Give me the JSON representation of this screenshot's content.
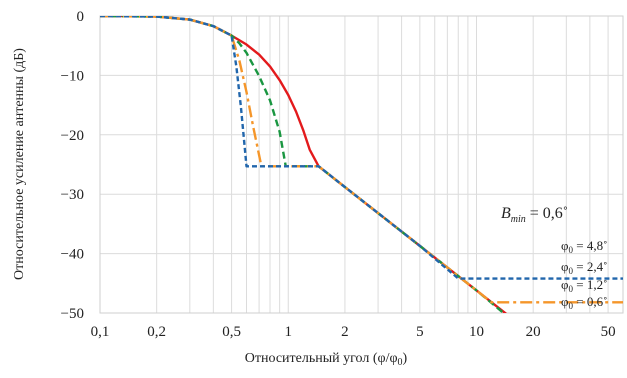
{
  "chart_data": {
    "type": "line",
    "x_scale": "log",
    "xlim": [
      0.1,
      60
    ],
    "ylim": [
      -50,
      0
    ],
    "xticks": [
      0.1,
      0.2,
      0.5,
      1,
      2,
      5,
      10,
      20,
      50
    ],
    "xtick_labels": [
      "0,1",
      "0,2",
      "0,5",
      "1",
      "2",
      "5",
      "10",
      "20",
      "50"
    ],
    "yticks": [
      0,
      -10,
      -20,
      -30,
      -40,
      -50
    ],
    "ytick_labels": [
      "0",
      "−10",
      "−20",
      "−30",
      "−40",
      "−50"
    ],
    "grid": true,
    "xlabel": {
      "main": "Относительный угол (φ/φ",
      "sub": "0",
      "tail": ")"
    },
    "ylabel": "Относительное усиление антенны (дБ)",
    "bmin_label": {
      "main": "B",
      "sub": "min",
      "tail": " = 0,6˚"
    },
    "series": [
      {
        "name_main": "φ",
        "name_sub": "0",
        "name_tail": " = 0,6˚",
        "color": "#e31a1c",
        "dash": "solid",
        "points": [
          [
            0.1,
            0
          ],
          [
            0.15,
            -0.02
          ],
          [
            0.2,
            -0.1
          ],
          [
            0.3,
            -0.6
          ],
          [
            0.4,
            -1.7
          ],
          [
            0.5,
            -3.3
          ],
          [
            0.6,
            -4.8
          ],
          [
            0.7,
            -6.5
          ],
          [
            0.8,
            -8.5
          ],
          [
            0.9,
            -10.8
          ],
          [
            1.0,
            -13.3
          ],
          [
            1.1,
            -16.1
          ],
          [
            1.2,
            -19.2
          ],
          [
            1.3,
            -22.5
          ],
          [
            1.45,
            -25.3
          ],
          [
            2,
            -28.8
          ],
          [
            5,
            -38.7
          ],
          [
            10,
            -46.2
          ],
          [
            16,
            -51.3
          ],
          [
            22,
            -54.7
          ],
          [
            60,
            -54.7
          ]
        ]
      },
      {
        "name_main": "φ",
        "name_sub": "0",
        "name_tail": " = 1,2˚",
        "color": "#1a9641",
        "dash": "7,4",
        "points": [
          [
            0.1,
            0
          ],
          [
            0.2,
            -0.1
          ],
          [
            0.3,
            -0.6
          ],
          [
            0.4,
            -1.7
          ],
          [
            0.5,
            -3.3
          ],
          [
            0.55,
            -4.6
          ],
          [
            0.6,
            -6.2
          ],
          [
            0.7,
            -10.1
          ],
          [
            0.8,
            -14.2
          ],
          [
            0.9,
            -19.5
          ],
          [
            0.97,
            -25.3
          ],
          [
            1.45,
            -25.3
          ],
          [
            2,
            -28.8
          ],
          [
            5,
            -38.7
          ],
          [
            10,
            -46.2
          ],
          [
            17,
            -52.3
          ],
          [
            60,
            -52.3
          ]
        ]
      },
      {
        "name_main": "φ",
        "name_sub": "0",
        "name_tail": " = 2,4˚",
        "color": "#f5962a",
        "dash": "12,4,3,4",
        "points": [
          [
            0.1,
            0
          ],
          [
            0.2,
            -0.1
          ],
          [
            0.3,
            -0.6
          ],
          [
            0.4,
            -1.7
          ],
          [
            0.5,
            -3.3
          ],
          [
            0.55,
            -7.5
          ],
          [
            0.6,
            -12.8
          ],
          [
            0.65,
            -18.5
          ],
          [
            0.72,
            -25.3
          ],
          [
            1.45,
            -25.3
          ],
          [
            2,
            -28.8
          ],
          [
            5,
            -38.7
          ],
          [
            10,
            -46.2
          ],
          [
            12,
            -48.2
          ],
          [
            60,
            -48.2
          ]
        ]
      },
      {
        "name_main": "φ",
        "name_sub": "0",
        "name_tail": " = 4,8˚",
        "color": "#2166ac",
        "dash": "5,3",
        "points": [
          [
            0.1,
            0
          ],
          [
            0.2,
            -0.1
          ],
          [
            0.3,
            -0.6
          ],
          [
            0.4,
            -1.7
          ],
          [
            0.5,
            -3.3
          ],
          [
            0.53,
            -8.5
          ],
          [
            0.56,
            -15.2
          ],
          [
            0.6,
            -25.3
          ],
          [
            1.45,
            -25.3
          ],
          [
            2,
            -28.8
          ],
          [
            5,
            -38.7
          ],
          [
            8,
            -44.2
          ],
          [
            60,
            -44.2
          ]
        ]
      }
    ],
    "plot_note": "The y-axis is clipped at −50 dB; curve values below it continue off the plotted area as in the original."
  }
}
